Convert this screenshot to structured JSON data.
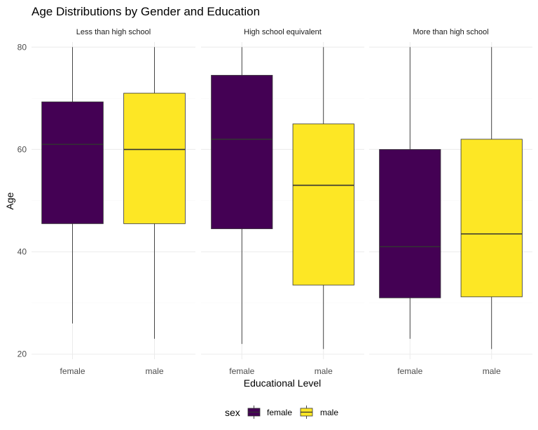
{
  "chart_data": {
    "type": "boxplot",
    "title": "Age Distributions by Gender and Education",
    "xlabel": "Educational Level",
    "ylabel": "Age",
    "ylim": [
      19,
      81
    ],
    "y_ticks": [
      20,
      40,
      60,
      80
    ],
    "categories": [
      "female",
      "male"
    ],
    "legend": {
      "title": "sex",
      "position": "bottom",
      "entries": [
        {
          "name": "female",
          "color": "#440154"
        },
        {
          "name": "male",
          "color": "#FDE725"
        }
      ]
    },
    "grid": true,
    "facets": [
      {
        "label": "Less than high school",
        "boxes": [
          {
            "sex": "female",
            "min": 26,
            "q1": 45.5,
            "median": 61,
            "q3": 69.3,
            "max": 80
          },
          {
            "sex": "male",
            "min": 23,
            "q1": 45.5,
            "median": 60,
            "q3": 71,
            "max": 80
          }
        ]
      },
      {
        "label": "High school equivalent",
        "boxes": [
          {
            "sex": "female",
            "min": 22,
            "q1": 44.5,
            "median": 62,
            "q3": 74.5,
            "max": 80
          },
          {
            "sex": "male",
            "min": 21,
            "q1": 33.5,
            "median": 53,
            "q3": 65,
            "max": 80
          }
        ]
      },
      {
        "label": "More than high school",
        "boxes": [
          {
            "sex": "female",
            "min": 23,
            "q1": 31,
            "median": 41,
            "q3": 60,
            "max": 80
          },
          {
            "sex": "male",
            "min": 21,
            "q1": 31.2,
            "median": 43.5,
            "q3": 62,
            "max": 80
          }
        ]
      }
    ]
  }
}
